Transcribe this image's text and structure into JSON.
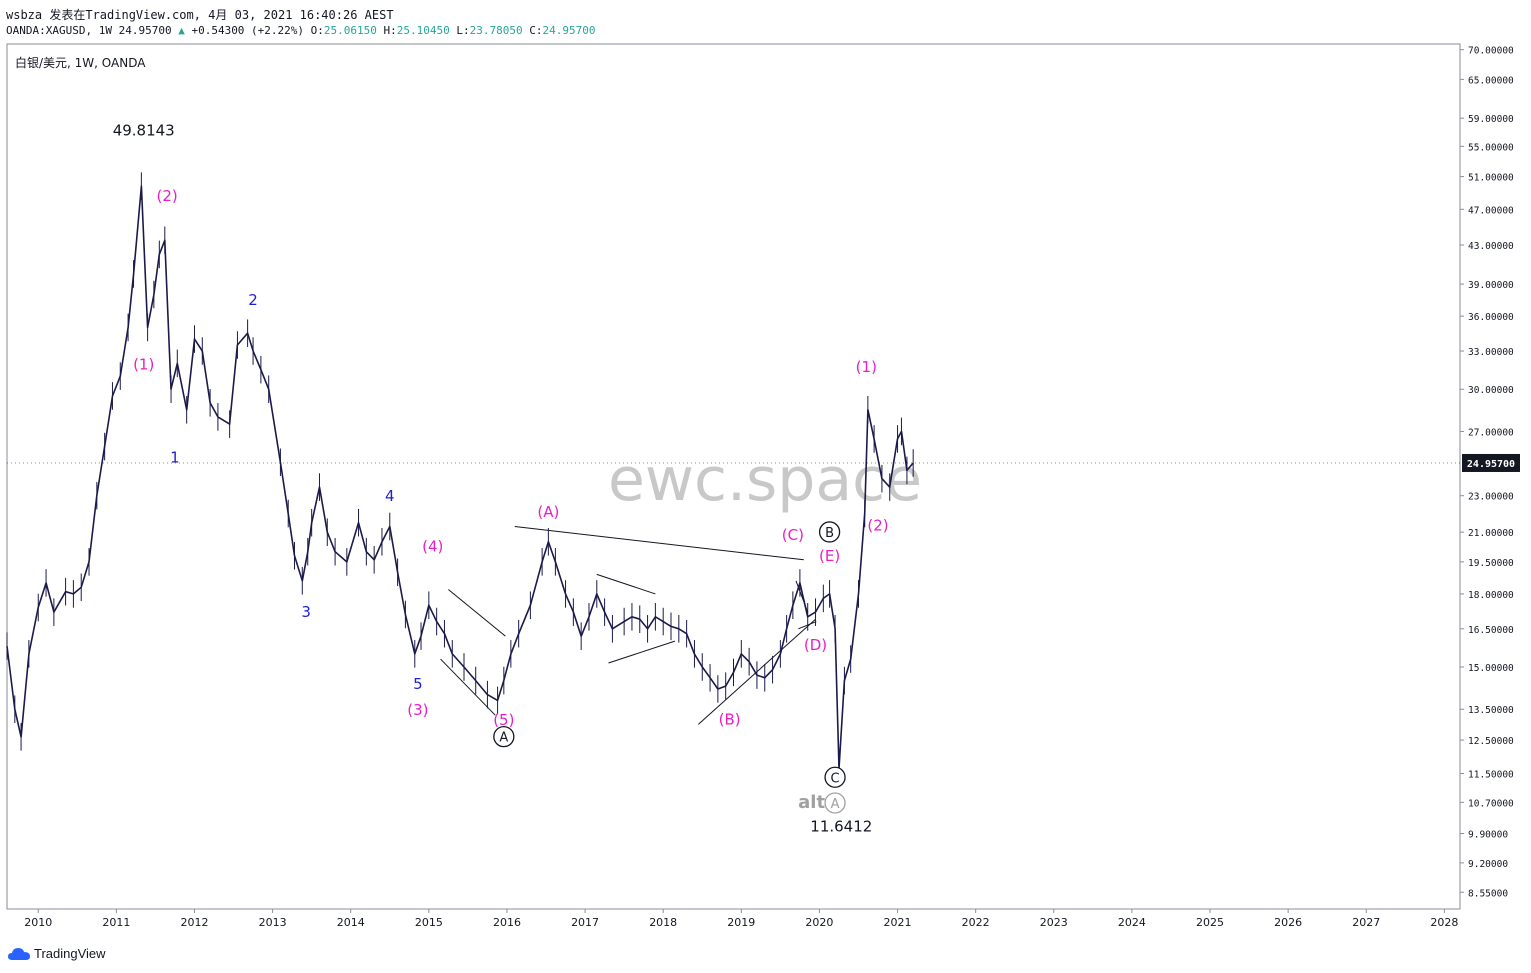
{
  "header": {
    "line1": "wsbza 发表在TradingView.com, 4月 03, 2021 16:40:26 AEST",
    "symbol": "OANDA:XAGUSD, 1W 24.95700",
    "change": "+0.54300 (+2.22%)",
    "o_label": "O:",
    "o_value": "25.06150",
    "h_label": "H:",
    "h_value": "25.10450",
    "l_label": "L:",
    "l_value": "23.78050",
    "c_label": "C:",
    "c_value": "24.95700"
  },
  "chart_title": "白银/美元, 1W, OANDA",
  "watermark": "ewc.space",
  "footer": {
    "brand": "TradingView"
  },
  "colors": {
    "candle": "#1b1a4a",
    "magenta": "#e91ec7",
    "blue": "#1f1fd6",
    "axis_text": "#131722",
    "price_tag_bg": "#131722",
    "watermark": "#c8c8c8",
    "alt_gray": "#a0a0a0"
  },
  "chart_data": {
    "type": "line",
    "scale": "log",
    "last_price": "24.95700",
    "x_ticks": [
      "2010",
      "2011",
      "2012",
      "2013",
      "2014",
      "2015",
      "2016",
      "2017",
      "2018",
      "2019",
      "2020",
      "2021",
      "2022",
      "2023",
      "2024",
      "2025",
      "2026",
      "2027",
      "2028"
    ],
    "y_ticks": [
      "70.00000",
      "65.00000",
      "59.00000",
      "55.00000",
      "51.00000",
      "47.00000",
      "43.00000",
      "39.00000",
      "36.00000",
      "33.00000",
      "30.00000",
      "27.00000",
      "24.95700",
      "23.00000",
      "21.00000",
      "19.50000",
      "18.00000",
      "16.50000",
      "15.00000",
      "13.50000",
      "12.50000",
      "11.50000",
      "10.70000",
      "9.90000",
      "9.20000",
      "8.55000"
    ],
    "ylim": [
      8.2,
      71
    ],
    "xlim": [
      2009.6,
      2028.2
    ],
    "series": [
      {
        "x": [
          2009.6,
          2009.7,
          2009.78,
          2009.88,
          2010.0,
          2010.1,
          2010.2,
          2010.35,
          2010.45,
          2010.55,
          2010.65,
          2010.75,
          2010.85,
          2010.95,
          2011.05,
          2011.15,
          2011.22,
          2011.32,
          2011.4,
          2011.48,
          2011.55,
          2011.62,
          2011.7,
          2011.78,
          2011.9,
          2012.0,
          2012.1,
          2012.2,
          2012.3,
          2012.45,
          2012.55,
          2012.68,
          2012.75,
          2012.85,
          2012.95,
          2013.1,
          2013.2,
          2013.28,
          2013.38,
          2013.45,
          2013.5,
          2013.6,
          2013.7,
          2013.8,
          2013.95,
          2014.1,
          2014.2,
          2014.3,
          2014.4,
          2014.5,
          2014.6,
          2014.7,
          2014.82,
          2014.9,
          2015.0,
          2015.1,
          2015.2,
          2015.3,
          2015.45,
          2015.6,
          2015.75,
          2015.88,
          2015.96,
          2016.05,
          2016.15,
          2016.3,
          2016.45,
          2016.53,
          2016.62,
          2016.75,
          2016.85,
          2016.95,
          2017.05,
          2017.15,
          2017.25,
          2017.35,
          2017.5,
          2017.6,
          2017.7,
          2017.8,
          2017.9,
          2018.0,
          2018.1,
          2018.2,
          2018.3,
          2018.4,
          2018.5,
          2018.6,
          2018.7,
          2018.8,
          2018.9,
          2019.0,
          2019.1,
          2019.2,
          2019.3,
          2019.4,
          2019.5,
          2019.58,
          2019.66,
          2019.75,
          2019.85,
          2019.95,
          2020.05,
          2020.13,
          2020.2,
          2020.25,
          2020.32,
          2020.4,
          2020.5,
          2020.58,
          2020.62,
          2020.7,
          2020.8,
          2020.9,
          2021.0,
          2021.05,
          2021.12,
          2021.2
        ],
        "values": [
          15.8,
          13.5,
          12.6,
          15.5,
          17.4,
          18.5,
          17.2,
          18.1,
          18.0,
          18.3,
          19.5,
          23.0,
          26.0,
          29.5,
          31.0,
          35.0,
          40.0,
          49.8,
          35.0,
          38.0,
          42.0,
          43.5,
          30.0,
          32.0,
          28.5,
          34.0,
          33.0,
          29.0,
          28.0,
          27.5,
          33.5,
          34.5,
          33.0,
          31.5,
          30.0,
          25.0,
          22.0,
          19.8,
          18.6,
          20.0,
          21.5,
          23.5,
          21.0,
          20.0,
          19.5,
          21.5,
          20.0,
          19.6,
          20.5,
          21.3,
          19.0,
          17.1,
          15.5,
          16.2,
          17.5,
          16.8,
          16.3,
          15.5,
          15.0,
          14.5,
          14.0,
          13.8,
          14.5,
          15.5,
          16.3,
          17.5,
          19.5,
          20.5,
          19.5,
          18.0,
          17.2,
          16.2,
          17.0,
          18.0,
          17.2,
          16.5,
          16.8,
          17.0,
          16.9,
          16.5,
          17.0,
          16.8,
          16.6,
          16.5,
          16.3,
          15.5,
          15.0,
          14.6,
          14.2,
          14.3,
          14.8,
          15.5,
          15.2,
          14.7,
          14.6,
          14.9,
          15.5,
          16.5,
          17.5,
          18.5,
          17.0,
          17.2,
          17.8,
          18.0,
          16.5,
          11.64,
          14.5,
          15.3,
          18.0,
          22.0,
          28.5,
          26.5,
          24.0,
          23.5,
          26.5,
          27.0,
          24.5,
          24.957
        ]
      }
    ],
    "annotations": [
      {
        "text": "49.8143",
        "color": "#131722",
        "x": 2011.35,
        "y": 56.5
      },
      {
        "text": "(2)",
        "color": "#e91ec7",
        "x": 2011.65,
        "y": 48.0
      },
      {
        "text": "(1)",
        "color": "#e91ec7",
        "x": 2011.35,
        "y": 31.5
      },
      {
        "text": "1",
        "color": "#1f1fd6",
        "x": 2011.75,
        "y": 25.0
      },
      {
        "text": "2",
        "color": "#1f1fd6",
        "x": 2012.75,
        "y": 37.0
      },
      {
        "text": "3",
        "color": "#1f1fd6",
        "x": 2013.43,
        "y": 17.0
      },
      {
        "text": "4",
        "color": "#1f1fd6",
        "x": 2014.5,
        "y": 22.7
      },
      {
        "text": "(4)",
        "color": "#e91ec7",
        "x": 2015.05,
        "y": 20.0
      },
      {
        "text": "5",
        "color": "#1f1fd6",
        "x": 2014.86,
        "y": 14.2
      },
      {
        "text": "(3)",
        "color": "#e91ec7",
        "x": 2014.86,
        "y": 13.3
      },
      {
        "text": "(5)",
        "color": "#e91ec7",
        "x": 2015.96,
        "y": 12.98
      },
      {
        "text": "A",
        "color": "#131722",
        "circled": true,
        "x": 2015.96,
        "y": 12.45
      },
      {
        "text": "(A)",
        "color": "#e91ec7",
        "x": 2016.53,
        "y": 21.8
      },
      {
        "text": "(C)",
        "color": "#e91ec7",
        "x": 2019.66,
        "y": 20.6
      },
      {
        "text": "B",
        "color": "#131722",
        "circled": true,
        "x": 2020.13,
        "y": 20.75
      },
      {
        "text": "(E)",
        "color": "#e91ec7",
        "x": 2020.13,
        "y": 19.55
      },
      {
        "text": "(D)",
        "color": "#e91ec7",
        "x": 2019.95,
        "y": 15.65
      },
      {
        "text": "(B)",
        "color": "#e91ec7",
        "x": 2018.85,
        "y": 13.0
      },
      {
        "text": "C",
        "color": "#131722",
        "circled": true,
        "x": 2020.2,
        "y": 11.25
      },
      {
        "text": "alt",
        "color": "#a0a0a0",
        "x": 2019.9,
        "y": 10.55
      },
      {
        "text": "A",
        "color": "#a0a0a0",
        "circled": true,
        "x": 2020.2,
        "y": 10.55
      },
      {
        "text": "11.6412",
        "color": "#131722",
        "x": 2020.28,
        "y": 9.95
      },
      {
        "text": "(1)",
        "color": "#e91ec7",
        "x": 2020.6,
        "y": 31.3
      },
      {
        "text": "(2)",
        "color": "#e91ec7",
        "x": 2020.75,
        "y": 21.1
      }
    ],
    "trendlines": [
      {
        "x1": 2016.1,
        "y1": 21.3,
        "x2": 2019.8,
        "y2": 19.6
      },
      {
        "x1": 2018.45,
        "y1": 13.0,
        "x2": 2019.95,
        "y2": 16.9
      },
      {
        "x1": 2015.25,
        "y1": 18.2,
        "x2": 2015.98,
        "y2": 16.2
      },
      {
        "x1": 2015.15,
        "y1": 15.3,
        "x2": 2015.85,
        "y2": 13.3
      },
      {
        "x1": 2017.15,
        "y1": 18.9,
        "x2": 2017.9,
        "y2": 18.0
      },
      {
        "x1": 2017.3,
        "y1": 15.15,
        "x2": 2018.15,
        "y2": 16.0
      },
      {
        "x1": 2019.7,
        "y1": 18.6,
        "x2": 2019.85,
        "y2": 17.2
      },
      {
        "x1": 2019.73,
        "y1": 16.5,
        "x2": 2019.96,
        "y2": 16.8
      }
    ]
  }
}
